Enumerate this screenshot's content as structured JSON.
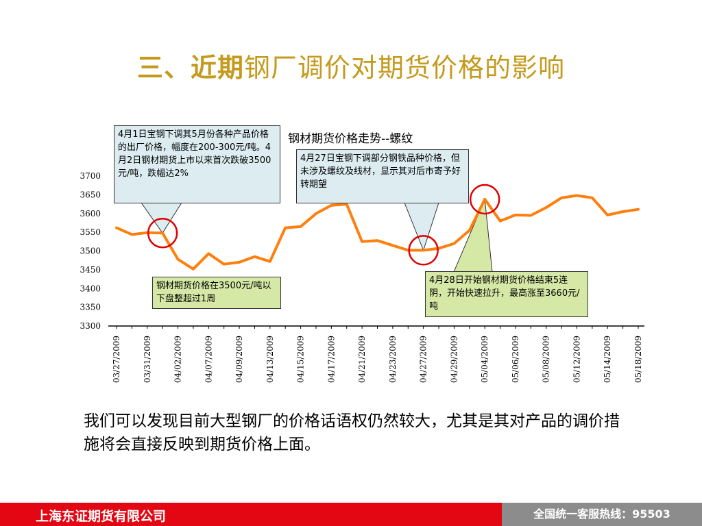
{
  "slide": {
    "title_emphasis": "三、近期",
    "title_rest": "钢厂调价对期货价格的影响",
    "conclusion": "我们可以发现目前大型钢厂的价格话语权仍然较大，尤其是其对产品的调价措施将会直接反映到期货价格上面。"
  },
  "colors": {
    "title": "#c59a1c",
    "series_line": "#ff7f0e",
    "highlight_circle": "#e00000",
    "callout_blue": "#dcecf1",
    "callout_green": "#d6e8a6",
    "footer_red": "#e30613",
    "footer_gray": "#8c8c8c"
  },
  "callouts": {
    "apr1": "4月1日宝钢下调其5月份各种产品价格的出厂价格，幅度在200-300元/吨。4月2日钢材期货上市以来首次跌破3500元/吨，跌幅达2%",
    "apr27": "4月27日宝钢下调部分钢铁品种价格，但未涉及螺纹及线材，显示其对后市寄予好转期望",
    "consolidation": "钢材期货价格在3500元/吨以下盘整超过1周",
    "apr28": "4月28日开始钢材期货价格结束5连阴，开始快速拉升，最高涨至3660元/吨"
  },
  "footer": {
    "company": "上海东证期货有限公司",
    "hotline": "全国统一客服热线：95503"
  },
  "chart_data": {
    "type": "line",
    "title": "钢材期货价格走势--螺纹",
    "xlabel": "",
    "ylabel": "",
    "ylim": [
      3300,
      3700
    ],
    "yticks": [
      3300,
      3350,
      3400,
      3450,
      3500,
      3550,
      3600,
      3650,
      3700
    ],
    "grid": false,
    "x_tick_labels": [
      "03/27/2009",
      "03/31/2009",
      "04/02/2009",
      "04/07/2009",
      "04/09/2009",
      "04/13/2009",
      "04/15/2009",
      "04/17/2009",
      "04/21/2009",
      "04/23/2009",
      "04/27/2009",
      "04/29/2009",
      "05/04/2009",
      "05/06/2009",
      "05/08/2009",
      "05/12/2009",
      "05/14/2009",
      "05/18/2009"
    ],
    "series": [
      {
        "values": [
          3562,
          3544,
          3549,
          3548,
          3478,
          3452,
          3493,
          3465,
          3470,
          3485,
          3472,
          3562,
          3565,
          3600,
          3622,
          3625,
          3525,
          3528,
          3515,
          3502,
          3502,
          3507,
          3520,
          3555,
          3638,
          3580,
          3596,
          3595,
          3616,
          3642,
          3648,
          3642,
          3596,
          3605,
          3611
        ]
      }
    ],
    "highlight_indices": [
      3,
      20,
      24
    ]
  }
}
